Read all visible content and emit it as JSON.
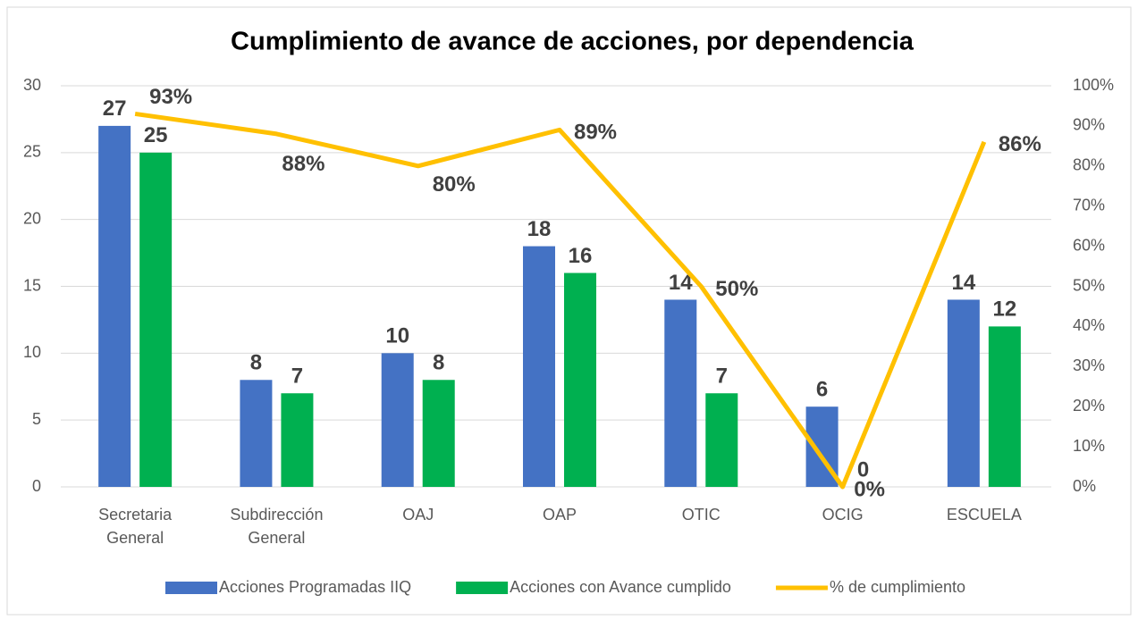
{
  "chart_data": {
    "type": "bar_line",
    "title": "Cumplimiento de avance de acciones, por dependencia",
    "categories": [
      "Secretaria General",
      "Subdirección General",
      "OAJ",
      "OAP",
      "OTIC",
      "OCIG",
      "ESCUELA"
    ],
    "series": [
      {
        "name": "Acciones Programadas IIQ",
        "color": "#4472c4",
        "type": "bar",
        "values": [
          27,
          8,
          10,
          18,
          14,
          6,
          14
        ]
      },
      {
        "name": "Acciones con Avance cumplido",
        "color": "#00b050",
        "type": "bar",
        "values": [
          25,
          7,
          8,
          16,
          7,
          0,
          12
        ]
      },
      {
        "name": "% de cumplimiento",
        "color": "#ffc000",
        "type": "line",
        "axis": "y2",
        "values": [
          93,
          88,
          80,
          89,
          50,
          0,
          86
        ],
        "value_labels": [
          "93%",
          "88%",
          "80%",
          "89%",
          "50%",
          "0%",
          "86%"
        ]
      }
    ],
    "ylim": [
      0,
      30
    ],
    "yticks": [
      0,
      5,
      10,
      15,
      20,
      25,
      30
    ],
    "y2lim": [
      0,
      100
    ],
    "y2ticks": [
      {
        "value": 0,
        "label": "0%"
      },
      {
        "value": 10,
        "label": "10%"
      },
      {
        "value": 20,
        "label": "20%"
      },
      {
        "value": 30,
        "label": "30%"
      },
      {
        "value": 40,
        "label": "40%"
      },
      {
        "value": 50,
        "label": "50%"
      },
      {
        "value": 60,
        "label": "60%"
      },
      {
        "value": 70,
        "label": "70%"
      },
      {
        "value": 80,
        "label": "80%"
      },
      {
        "value": 90,
        "label": "90%"
      },
      {
        "value": 100,
        "label": "100%"
      }
    ],
    "grid": true,
    "legend": "bottom"
  }
}
